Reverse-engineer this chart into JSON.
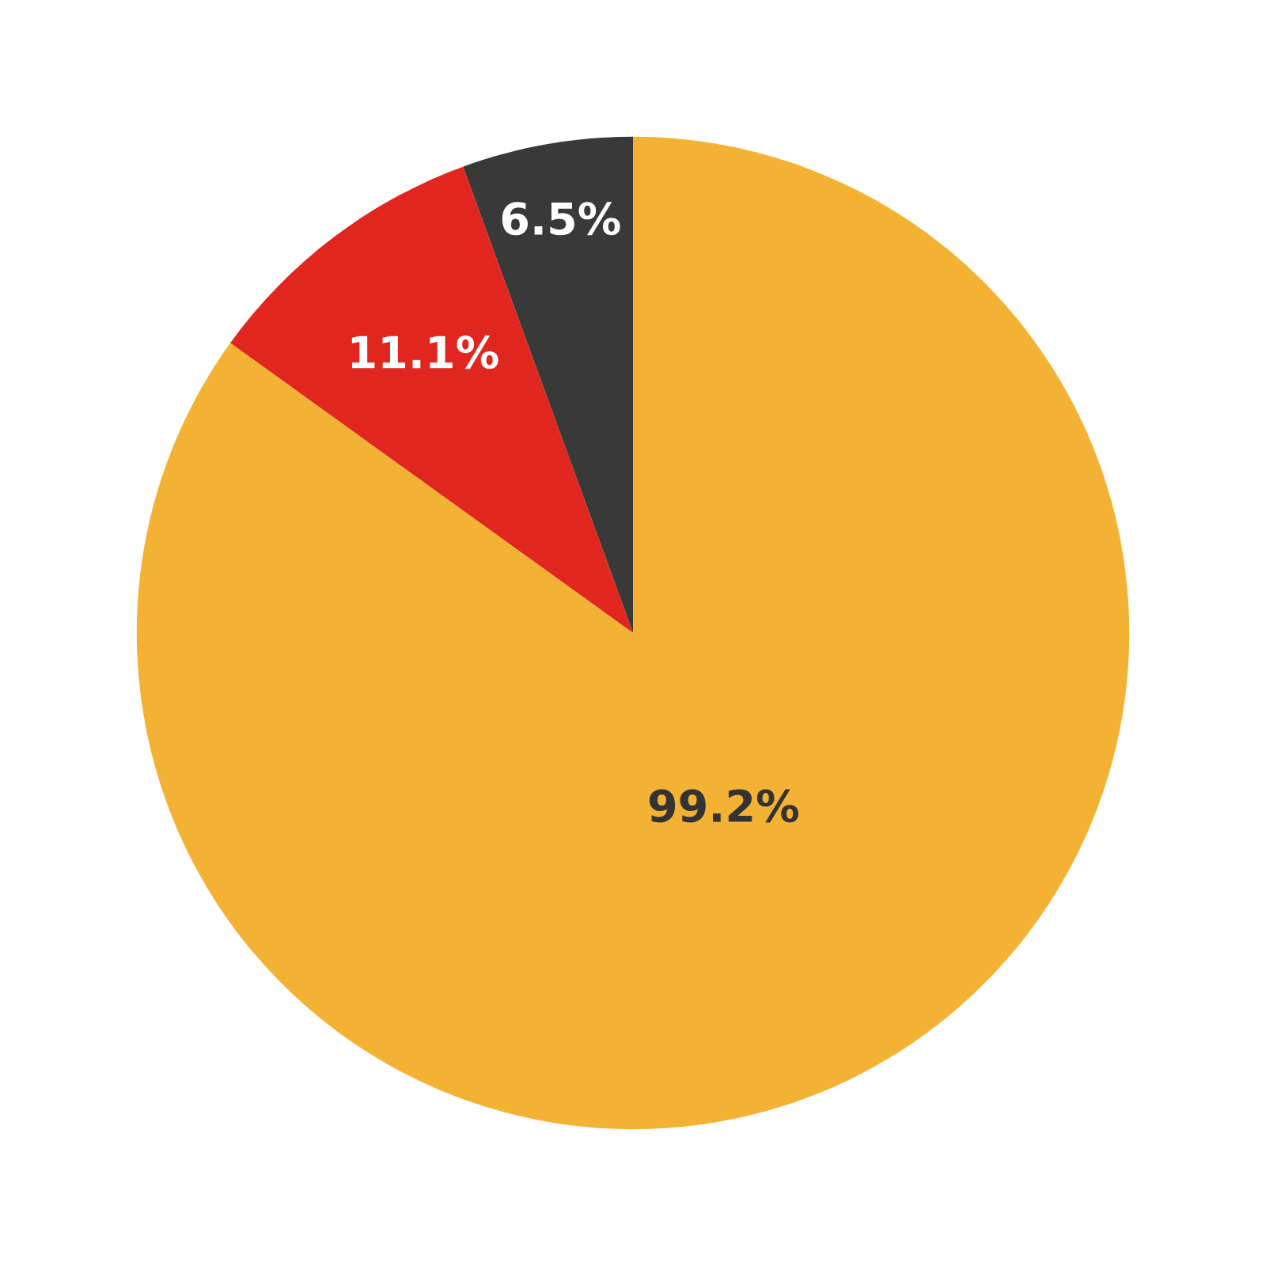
{
  "chart_data": {
    "type": "pie",
    "categories": [
      null,
      null,
      null
    ],
    "values": [
      6.5,
      11.1,
      99.2
    ],
    "colors": [
      "#393939",
      "#e0261e",
      "#f4b234"
    ],
    "value_labels": [
      "6.5%",
      "11.1%",
      "99.2%"
    ]
  }
}
